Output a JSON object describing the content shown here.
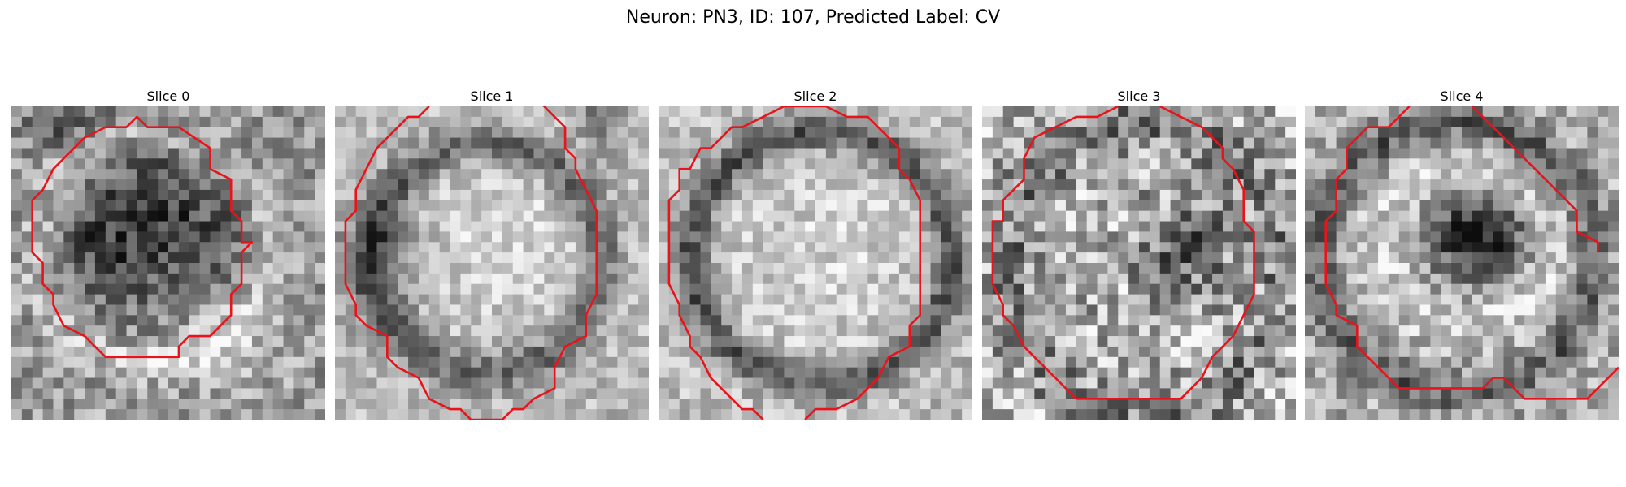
{
  "figure": {
    "title": "Neuron: PN3, ID: 107, Predicted Label: CV"
  },
  "panels": [
    {
      "title": "Slice 0"
    },
    {
      "title": "Slice 1"
    },
    {
      "title": "Slice 2"
    },
    {
      "title": "Slice 3"
    },
    {
      "title": "Slice 4"
    }
  ],
  "colors": {
    "contour": "#e8141b",
    "background": "#ffffff"
  }
}
